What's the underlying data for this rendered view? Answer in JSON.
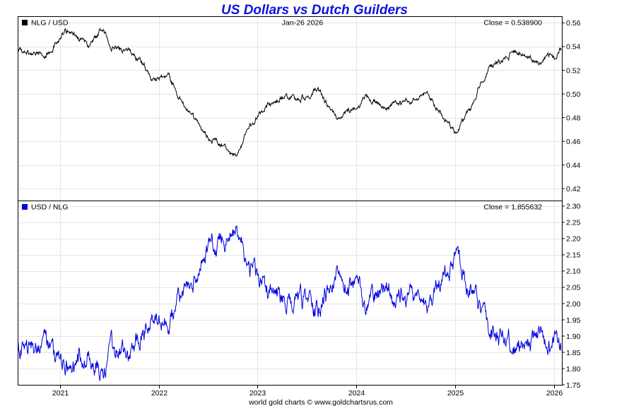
{
  "chart_data": {
    "title": "US Dollars vs Dutch Guilders",
    "date_label": "Jan-26  2026",
    "footer": "world gold charts © www.goldchartsrus.com",
    "x_axis": {
      "type": "time",
      "range": [
        2020.58,
        2026.08
      ],
      "ticks": [
        2021,
        2022,
        2023,
        2024,
        2025,
        2026
      ],
      "tick_labels": [
        "2021",
        "2022",
        "2023",
        "2024",
        "2025",
        "2026"
      ]
    },
    "panels": [
      {
        "type": "line",
        "series_name": "NLG / USD",
        "color": "#000000",
        "close_label": "Close = 0.538900",
        "ylim": [
          0.41,
          0.565
        ],
        "yticks": [
          0.42,
          0.44,
          0.46,
          0.48,
          0.5,
          0.52,
          0.54,
          0.56
        ],
        "ytick_labels": [
          "0.42",
          "0.44",
          "0.46",
          "0.48",
          "0.50",
          "0.52",
          "0.54",
          "0.56"
        ],
        "x": [
          2020.58,
          2020.75,
          2020.9,
          2021.05,
          2021.2,
          2021.3,
          2021.42,
          2021.55,
          2021.7,
          2021.85,
          2021.92,
          2022.0,
          2022.1,
          2022.2,
          2022.3,
          2022.45,
          2022.55,
          2022.65,
          2022.72,
          2022.8,
          2022.9,
          2023.0,
          2023.1,
          2023.25,
          2023.4,
          2023.55,
          2023.6,
          2023.75,
          2023.85,
          2024.0,
          2024.1,
          2024.2,
          2024.3,
          2024.45,
          2024.6,
          2024.7,
          2024.8,
          2024.95,
          2025.0,
          2025.05,
          2025.15,
          2025.25,
          2025.35,
          2025.5,
          2025.6,
          2025.75,
          2025.85,
          2025.95,
          2026.02,
          2026.06
        ],
        "y": [
          0.537,
          0.533,
          0.535,
          0.553,
          0.547,
          0.538,
          0.553,
          0.539,
          0.535,
          0.525,
          0.512,
          0.513,
          0.515,
          0.499,
          0.485,
          0.468,
          0.462,
          0.457,
          0.448,
          0.448,
          0.47,
          0.482,
          0.491,
          0.497,
          0.496,
          0.499,
          0.505,
          0.485,
          0.479,
          0.491,
          0.496,
          0.493,
          0.487,
          0.492,
          0.496,
          0.502,
          0.489,
          0.472,
          0.469,
          0.475,
          0.485,
          0.51,
          0.523,
          0.53,
          0.535,
          0.53,
          0.527,
          0.532,
          0.532,
          0.5389
        ]
      },
      {
        "type": "line",
        "series_name": "USD / NLG",
        "color": "#0000dd",
        "close_label": "Close = 1.855632",
        "ylim": [
          1.75,
          2.315
        ],
        "yticks": [
          1.75,
          1.8,
          1.85,
          1.9,
          1.95,
          2.0,
          2.05,
          2.1,
          2.15,
          2.2,
          2.25,
          2.3
        ],
        "ytick_labels": [
          "1.75",
          "1.80",
          "1.85",
          "1.90",
          "1.95",
          "2.00",
          "2.05",
          "2.10",
          "2.15",
          "2.20",
          "2.25",
          "2.30"
        ],
        "x": [
          2020.58,
          2020.75,
          2020.9,
          2021.05,
          2021.2,
          2021.3,
          2021.42,
          2021.55,
          2021.7,
          2021.85,
          2021.92,
          2022.0,
          2022.1,
          2022.2,
          2022.3,
          2022.45,
          2022.55,
          2022.65,
          2022.72,
          2022.8,
          2022.9,
          2023.0,
          2023.1,
          2023.25,
          2023.4,
          2023.55,
          2023.6,
          2023.75,
          2023.85,
          2024.0,
          2024.1,
          2024.2,
          2024.3,
          2024.45,
          2024.6,
          2024.7,
          2024.8,
          2024.95,
          2025.0,
          2025.05,
          2025.15,
          2025.25,
          2025.35,
          2025.5,
          2025.6,
          2025.75,
          2025.85,
          2025.95,
          2026.02,
          2026.06
        ],
        "y": [
          1.862,
          1.876,
          1.869,
          1.808,
          1.829,
          1.859,
          1.808,
          1.855,
          1.869,
          1.905,
          1.953,
          1.949,
          1.942,
          2.004,
          2.062,
          2.137,
          2.165,
          2.188,
          2.232,
          2.232,
          2.128,
          2.075,
          2.037,
          2.012,
          2.016,
          2.004,
          1.98,
          2.062,
          2.088,
          2.037,
          2.016,
          2.028,
          2.053,
          2.033,
          2.016,
          1.992,
          2.045,
          2.119,
          2.132,
          2.105,
          2.062,
          1.961,
          1.912,
          1.887,
          1.869,
          1.887,
          1.898,
          1.88,
          1.88,
          1.8556
        ]
      }
    ]
  }
}
